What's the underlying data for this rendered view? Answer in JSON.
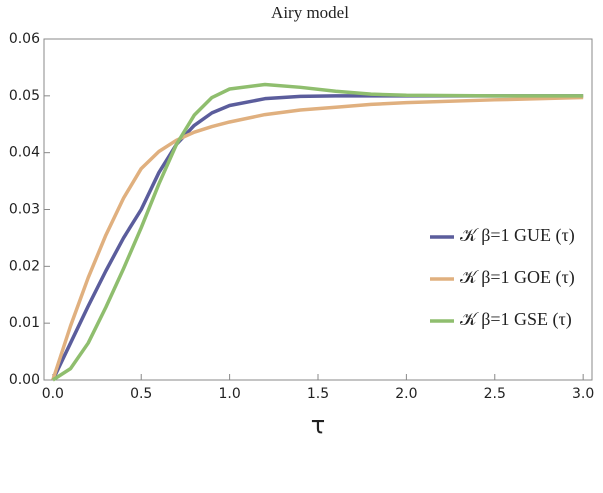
{
  "chart_data": {
    "type": "line",
    "title": "Airy model",
    "x_label": "τ",
    "x": [
      0,
      0.1,
      0.2,
      0.3,
      0.4,
      0.5,
      0.6,
      0.7,
      0.8,
      0.9,
      1.0,
      1.2,
      1.4,
      1.6,
      1.8,
      2.0,
      2.5,
      3.0
    ],
    "series": [
      {
        "name": "𝒦 β=1 GUE (τ)",
        "color": "#5b5d9c",
        "values": [
          0,
          0.0065,
          0.013,
          0.0192,
          0.025,
          0.03,
          0.0365,
          0.0415,
          0.0448,
          0.047,
          0.0483,
          0.0495,
          0.0499,
          0.05,
          0.05,
          0.05,
          0.05,
          0.05
        ]
      },
      {
        "name": "𝒦 β=1 GOE (τ)",
        "color": "#e0b07f",
        "values": [
          0,
          0.0095,
          0.018,
          0.0255,
          0.032,
          0.0372,
          0.0402,
          0.0422,
          0.0436,
          0.0446,
          0.0454,
          0.0467,
          0.0475,
          0.048,
          0.0485,
          0.0488,
          0.0493,
          0.0497
        ]
      },
      {
        "name": "𝒦 β=1 GSE (τ)",
        "color": "#8fbe6e",
        "values": [
          0,
          0.002,
          0.0065,
          0.0128,
          0.0196,
          0.0268,
          0.0345,
          0.0415,
          0.0466,
          0.0497,
          0.0512,
          0.052,
          0.0515,
          0.0508,
          0.0503,
          0.0501,
          0.05,
          0.05
        ]
      }
    ],
    "xlim": [
      -0.05,
      3.05
    ],
    "ylim": [
      0,
      0.06
    ],
    "xticks": [
      {
        "value": 0,
        "label": "0.0"
      },
      0.5,
      {
        "value": 1,
        "label": "1.0"
      },
      1.5,
      {
        "value": 2,
        "label": "2.0"
      },
      2.5,
      {
        "value": 3,
        "label": "3.0"
      }
    ],
    "yticks": [
      {
        "value": 0,
        "label": "0.00"
      },
      0.01,
      0.02,
      0.03,
      0.04,
      0.05,
      0.06
    ],
    "legend": "right"
  }
}
